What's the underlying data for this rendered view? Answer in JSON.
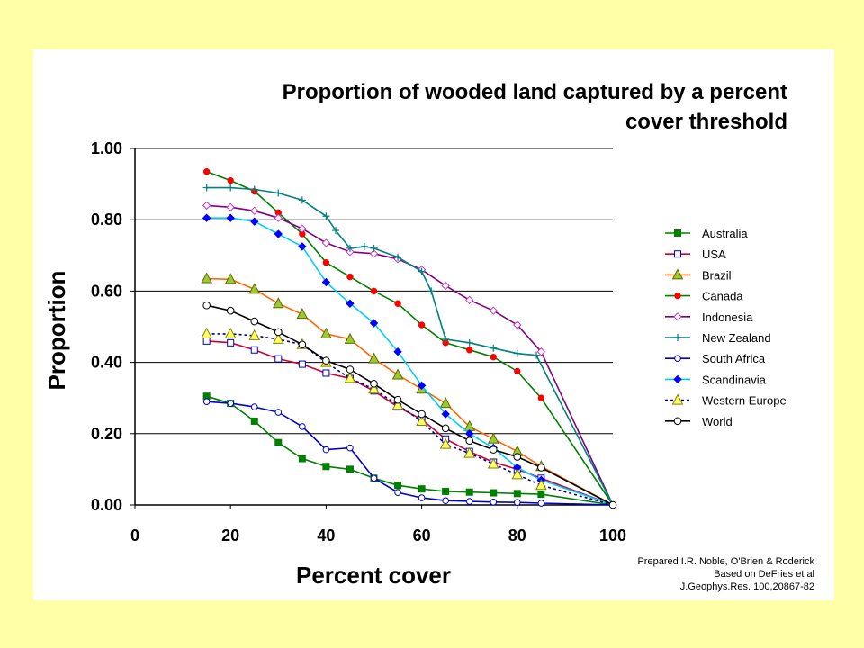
{
  "colors": {
    "slide_background": "#ffffa8",
    "plot_area": "#ffffff"
  },
  "credit": [
    "Prepared I.R. Noble, O'Brien & Roderick",
    "Based on DeFries et al",
    "J.Geophys.Res. 100,20867-82"
  ],
  "chart_data": {
    "type": "line",
    "title": [
      "Proportion of wooded land captured by a percent",
      "cover threshold"
    ],
    "xlabel": "Percent cover",
    "ylabel": "Proportion",
    "xlim": [
      0,
      100
    ],
    "ylim": [
      0,
      1
    ],
    "xticks": [
      0,
      20,
      40,
      60,
      80,
      100
    ],
    "xtick_labels": [
      "0",
      "20",
      "40",
      "60",
      "80",
      "100"
    ],
    "yticks": [
      0,
      0.2,
      0.4,
      0.6,
      0.8,
      1.0
    ],
    "ytick_labels": [
      "0.00",
      "0.20",
      "0.40",
      "0.60",
      "0.80",
      "1.00"
    ],
    "grid": "horizontal",
    "legend_position": "right",
    "series": [
      {
        "name": "Australia",
        "color": "#008000",
        "marker": "square-filled",
        "dashed": false,
        "x": [
          15,
          20,
          25,
          30,
          35,
          40,
          45,
          50,
          55,
          60,
          65,
          70,
          75,
          80,
          85,
          100
        ],
        "y": [
          0.305,
          0.285,
          0.235,
          0.175,
          0.13,
          0.108,
          0.1,
          0.075,
          0.055,
          0.045,
          0.038,
          0.036,
          0.034,
          0.032,
          0.03,
          0.0
        ]
      },
      {
        "name": "USA",
        "color": "#cc0033",
        "marker": "square-open",
        "dashed": false,
        "x": [
          15,
          20,
          25,
          30,
          35,
          40,
          45,
          50,
          55,
          60,
          65,
          70,
          75,
          80,
          85,
          100
        ],
        "y": [
          0.46,
          0.455,
          0.435,
          0.41,
          0.395,
          0.37,
          0.355,
          0.32,
          0.275,
          0.24,
          0.185,
          0.15,
          0.12,
          0.1,
          0.075,
          0.0
        ]
      },
      {
        "name": "Brazil",
        "color": "#ff6600",
        "marker": "triangle-olive",
        "dashed": false,
        "x": [
          15,
          20,
          25,
          30,
          35,
          40,
          45,
          50,
          55,
          60,
          65,
          70,
          75,
          80,
          85,
          100
        ],
        "y": [
          0.635,
          0.633,
          0.605,
          0.565,
          0.535,
          0.48,
          0.465,
          0.41,
          0.365,
          0.325,
          0.285,
          0.22,
          0.185,
          0.15,
          0.108,
          0.0
        ]
      },
      {
        "name": "Canada",
        "color": "#008000",
        "marker": "dot-red",
        "dashed": false,
        "x": [
          15,
          20,
          25,
          30,
          35,
          40,
          45,
          50,
          55,
          60,
          65,
          70,
          75,
          80,
          85,
          100
        ],
        "y": [
          0.935,
          0.91,
          0.88,
          0.82,
          0.76,
          0.68,
          0.64,
          0.6,
          0.565,
          0.505,
          0.455,
          0.435,
          0.415,
          0.375,
          0.3,
          0.0
        ]
      },
      {
        "name": "Indonesia",
        "color": "#800080",
        "marker": "diamond-open",
        "dashed": false,
        "x": [
          15,
          20,
          25,
          30,
          35,
          40,
          45,
          50,
          55,
          60,
          65,
          70,
          75,
          80,
          85,
          100
        ],
        "y": [
          0.84,
          0.835,
          0.825,
          0.805,
          0.775,
          0.735,
          0.71,
          0.705,
          0.69,
          0.66,
          0.615,
          0.575,
          0.545,
          0.505,
          0.43,
          0.0
        ]
      },
      {
        "name": "New Zealand",
        "color": "#008080",
        "marker": "plus",
        "dashed": false,
        "x": [
          15,
          20,
          25,
          30,
          35,
          40,
          42,
          45,
          48,
          50,
          55,
          60,
          62,
          65,
          70,
          75,
          80,
          84,
          100
        ],
        "y": [
          0.89,
          0.89,
          0.885,
          0.875,
          0.855,
          0.81,
          0.77,
          0.72,
          0.725,
          0.72,
          0.695,
          0.655,
          0.6,
          0.465,
          0.455,
          0.44,
          0.425,
          0.42,
          0.0
        ]
      },
      {
        "name": "South Africa",
        "color": "#0000cc",
        "marker": "circle-open",
        "dashed": false,
        "x": [
          15,
          20,
          25,
          30,
          35,
          40,
          45,
          50,
          55,
          60,
          65,
          70,
          75,
          80,
          85,
          100
        ],
        "y": [
          0.29,
          0.285,
          0.275,
          0.26,
          0.22,
          0.155,
          0.16,
          0.075,
          0.035,
          0.02,
          0.012,
          0.01,
          0.008,
          0.007,
          0.005,
          0.0
        ]
      },
      {
        "name": "Scandinavia",
        "color": "#00ccff",
        "marker": "diamond-blue",
        "dashed": false,
        "x": [
          15,
          20,
          25,
          30,
          35,
          40,
          45,
          50,
          55,
          60,
          65,
          70,
          75,
          80,
          85,
          100
        ],
        "y": [
          0.805,
          0.805,
          0.795,
          0.76,
          0.725,
          0.625,
          0.565,
          0.51,
          0.43,
          0.335,
          0.255,
          0.2,
          0.16,
          0.105,
          0.07,
          0.0
        ]
      },
      {
        "name": "Western Europe",
        "color": "#000080",
        "marker": "triangle-yellow",
        "dashed": true,
        "x": [
          15,
          20,
          25,
          30,
          35,
          40,
          45,
          50,
          55,
          60,
          65,
          70,
          75,
          80,
          85,
          100
        ],
        "y": [
          0.48,
          0.48,
          0.475,
          0.465,
          0.45,
          0.4,
          0.355,
          0.325,
          0.28,
          0.235,
          0.17,
          0.145,
          0.115,
          0.085,
          0.055,
          0.0
        ]
      },
      {
        "name": "World",
        "color": "#000000",
        "marker": "circle-open-black",
        "dashed": false,
        "x": [
          15,
          20,
          25,
          30,
          35,
          40,
          45,
          50,
          55,
          60,
          65,
          70,
          75,
          80,
          85,
          100
        ],
        "y": [
          0.56,
          0.545,
          0.515,
          0.485,
          0.45,
          0.405,
          0.38,
          0.34,
          0.295,
          0.255,
          0.215,
          0.18,
          0.155,
          0.135,
          0.105,
          0.0
        ]
      }
    ]
  }
}
